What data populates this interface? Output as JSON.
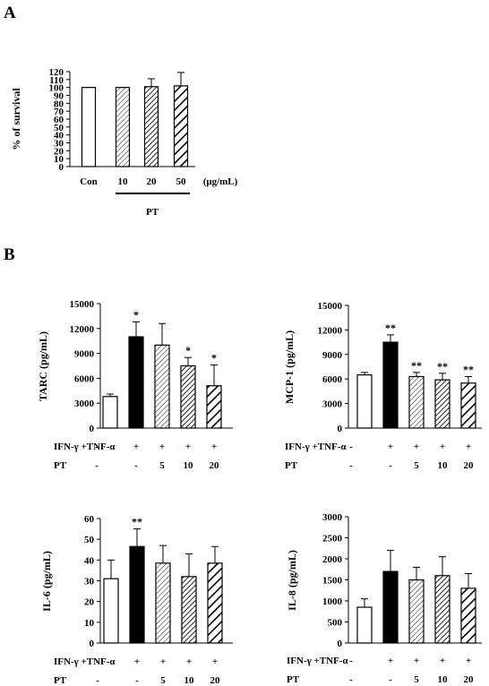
{
  "panel_labels": [
    "A",
    "B"
  ],
  "chart_data": [
    {
      "id": "survival",
      "panel": "A",
      "type": "bar",
      "ylabel": "% of survival",
      "ylim": [
        0,
        120
      ],
      "yticks": [
        0,
        10,
        20,
        30,
        40,
        50,
        60,
        70,
        80,
        90,
        100,
        110,
        120
      ],
      "categories": [
        "Con",
        "10",
        "20",
        "50"
      ],
      "unit": "(μg/mL)",
      "group_label": "PT",
      "values": [
        100,
        100,
        101,
        102
      ],
      "errors": [
        0,
        0,
        10,
        17
      ],
      "fills": [
        "white",
        "hatch-fine",
        "hatch-medium",
        "hatch-bold"
      ],
      "stars": [
        "",
        "",
        "",
        ""
      ]
    },
    {
      "id": "tarc",
      "panel": "B",
      "type": "bar",
      "ylabel": "TARC (pg/mL)",
      "ylim": [
        0,
        15000
      ],
      "yticks": [
        0,
        3000,
        6000,
        9000,
        12000,
        15000
      ],
      "values": [
        3800,
        11000,
        10000,
        7500,
        5100
      ],
      "errors": [
        300,
        1800,
        2600,
        1000,
        2500
      ],
      "fills": [
        "white",
        "black",
        "hatch-fine",
        "hatch-medium",
        "hatch-bold"
      ],
      "stars": [
        "",
        "*",
        "",
        "*",
        "*"
      ],
      "row1_label": "IFN-γ +TNF-α",
      "row1": [
        "-",
        "+",
        "+",
        "+",
        "+"
      ],
      "row2_label": "PT",
      "row2": [
        "-",
        "-",
        "5",
        "10",
        "20"
      ]
    },
    {
      "id": "mcp1",
      "panel": "B",
      "type": "bar",
      "ylabel": "MCP-1 (pg/mL)",
      "ylim": [
        0,
        15000
      ],
      "yticks": [
        0,
        3000,
        6000,
        9000,
        12000,
        15000
      ],
      "values": [
        6500,
        10500,
        6300,
        5900,
        5500
      ],
      "errors": [
        300,
        900,
        500,
        800,
        800
      ],
      "fills": [
        "white",
        "black",
        "hatch-fine",
        "hatch-medium",
        "hatch-bold"
      ],
      "stars": [
        "",
        "**",
        "**",
        "**",
        "**"
      ],
      "row1_label": "IFN-γ +TNF-α",
      "row1": [
        "-",
        "+",
        "+",
        "+",
        "+"
      ],
      "row2_label": "PT",
      "row2": [
        "-",
        "-",
        "5",
        "10",
        "20"
      ]
    },
    {
      "id": "il6",
      "panel": "B",
      "type": "bar",
      "ylabel": "IL-6 (pg/mL)",
      "ylim": [
        0,
        60
      ],
      "yticks": [
        0,
        10,
        20,
        30,
        40,
        50,
        60
      ],
      "values": [
        31,
        46.5,
        38.5,
        32,
        38.5
      ],
      "errors": [
        9,
        8.5,
        8.5,
        11,
        8
      ],
      "fills": [
        "white",
        "black",
        "hatch-fine",
        "hatch-medium",
        "hatch-bold"
      ],
      "stars": [
        "",
        "**",
        "",
        "",
        ""
      ],
      "row1_label": "IFN-γ +TNF-α",
      "row1": [
        "-",
        "+",
        "+",
        "+",
        "+"
      ],
      "row2_label": "PT",
      "row2": [
        "-",
        "-",
        "5",
        "10",
        "20"
      ]
    },
    {
      "id": "il8",
      "panel": "B",
      "type": "bar",
      "ylabel": "IL-8 (pg/mL)",
      "ylim": [
        0,
        3000
      ],
      "yticks": [
        0,
        500,
        1000,
        1500,
        2000,
        2500,
        3000
      ],
      "values": [
        850,
        1700,
        1500,
        1600,
        1300
      ],
      "errors": [
        200,
        500,
        300,
        450,
        350
      ],
      "fills": [
        "white",
        "black",
        "hatch-fine",
        "hatch-medium",
        "hatch-bold"
      ],
      "stars": [
        "",
        "",
        "",
        "",
        ""
      ],
      "row1_label": "IFN-γ +TNF-α",
      "row1": [
        "-",
        "+",
        "+",
        "+",
        "+"
      ],
      "row2_label": "PT",
      "row2": [
        "-",
        "-",
        "5",
        "10",
        "20"
      ]
    }
  ]
}
